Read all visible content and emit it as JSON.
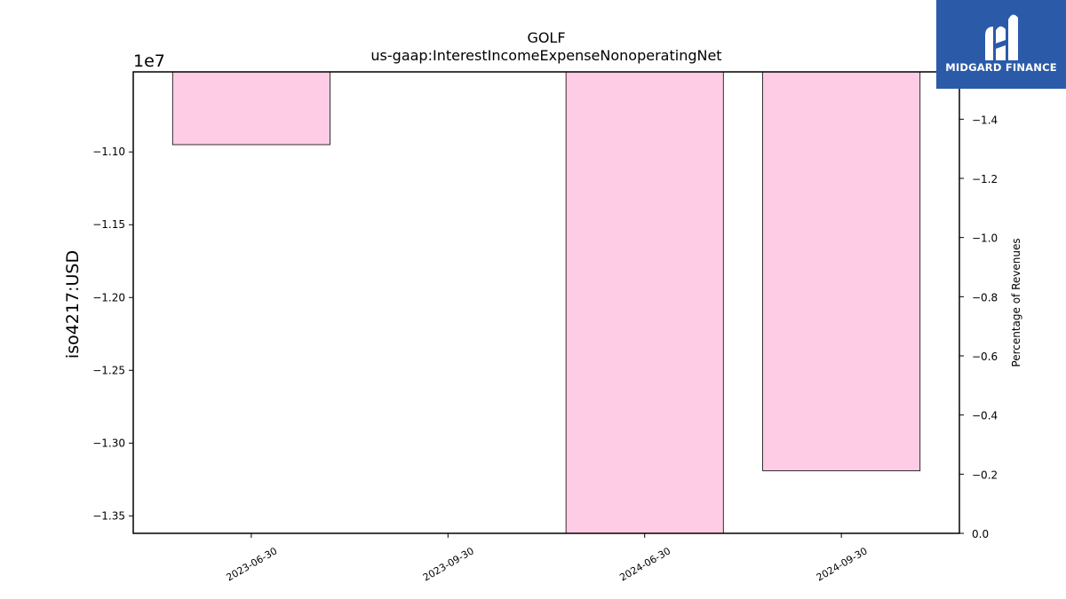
{
  "brand": {
    "name": "MIDGARD FINANCE",
    "logo_color": "#2b5aa9"
  },
  "chart_data": {
    "type": "bar",
    "title": "GOLF",
    "subtitle": "us-gaap:InterestIncomeExpenseNonoperatingNet",
    "categories": [
      "2023-06-30",
      "2023-09-30",
      "2024-06-30",
      "2024-09-30"
    ],
    "series": [
      {
        "values": [
          -10950000,
          null,
          -13620000,
          -13190000
        ]
      }
    ],
    "ylabel": "iso4217:USD",
    "y_offset_label": "1e7",
    "ylim": [
      -13620000,
      -10450000
    ],
    "yticks": [
      -11000000,
      -11500000,
      -12000000,
      -12500000,
      -13000000,
      -13500000
    ],
    "ytick_labels": [
      "−1.10",
      "−1.15",
      "−1.20",
      "−1.25",
      "−1.30",
      "−1.35"
    ],
    "y2label": "Percentage of Revenues",
    "y2lim": [
      0.0,
      1.56
    ],
    "y2ticks": [
      0.0,
      0.2,
      0.4,
      0.6,
      0.8,
      1.0,
      1.2,
      1.4
    ],
    "y2tick_labels": [
      "0.0",
      "−0.2",
      "−0.4",
      "−0.6",
      "−0.8",
      "−1.0",
      "−1.2",
      "−1.4"
    ],
    "bar_color": "#ffcce6",
    "grid": false,
    "legend": "none"
  }
}
